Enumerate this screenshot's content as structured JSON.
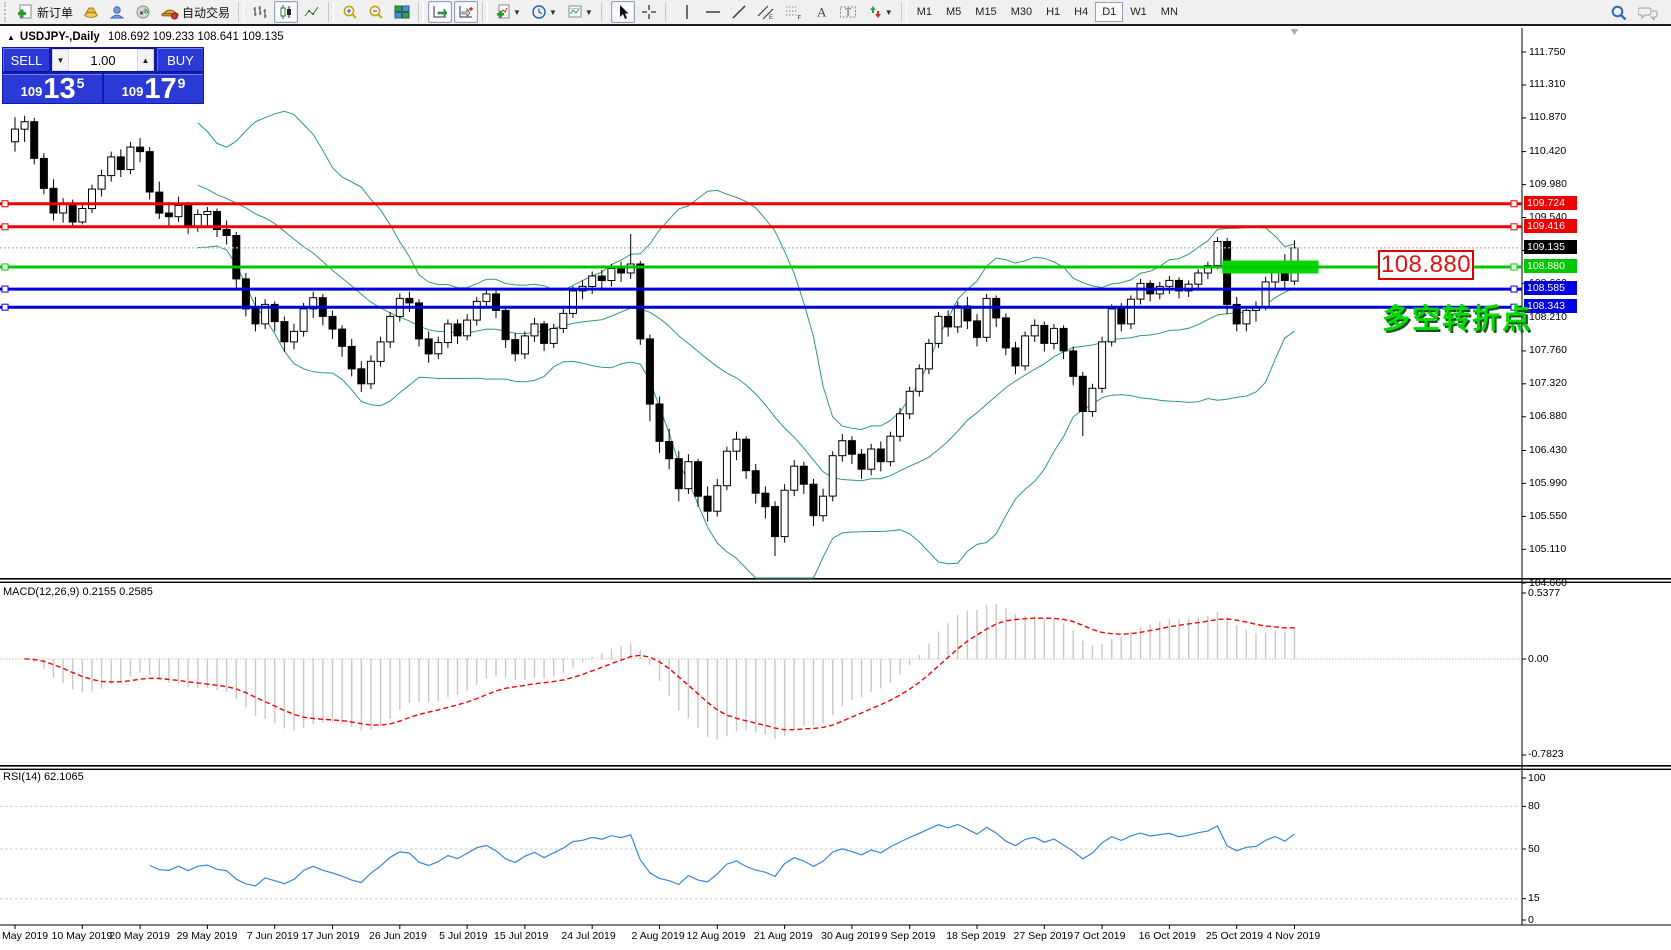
{
  "toolbar": {
    "new_order_label": "新订单",
    "autotrade_label": "自动交易",
    "timeframes": [
      "M1",
      "M5",
      "M15",
      "M30",
      "H1",
      "H4",
      "D1",
      "W1",
      "MN"
    ],
    "active_timeframe": "D1"
  },
  "chart_header": {
    "collapse_icon": "▲",
    "title": "USDJPY-,Daily",
    "ohlc_text": "108.692 109.233 108.641 109.135"
  },
  "trade_panel": {
    "sell_label": "SELL",
    "buy_label": "BUY",
    "volume": "1.00",
    "down_arrow": "▼",
    "up_arrow": "▲",
    "sell_price_small": "109",
    "sell_price_big": "13",
    "sell_price_sup": "5",
    "buy_price_small": "109",
    "buy_price_big": "17",
    "buy_price_sup": "9"
  },
  "annotations": {
    "price_box": "108.880",
    "turning_point_text": "多空转折点"
  },
  "indicator_labels": {
    "macd": "MACD(12,26,9) 0.2155 0.2585",
    "rsi": "RSI(14) 62.1065"
  },
  "chart_data": {
    "type": "candlestick",
    "symbol": "USDJPY-",
    "timeframe": "Daily",
    "current_ohlc": {
      "open": 108.692,
      "high": 109.233,
      "low": 108.641,
      "close": 109.135
    },
    "y_ticks": [
      111.75,
      111.31,
      110.87,
      110.42,
      109.98,
      109.54,
      109.1,
      108.66,
      108.21,
      107.76,
      107.32,
      106.88,
      106.43,
      105.99,
      105.55,
      105.11,
      104.66
    ],
    "horizontal_levels": [
      {
        "price": 109.724,
        "color": "#f00000",
        "style": "solid"
      },
      {
        "price": 109.416,
        "color": "#f00000",
        "style": "solid"
      },
      {
        "price": 109.135,
        "color": "#000000",
        "style": "current"
      },
      {
        "price": 108.88,
        "color": "#00c800",
        "style": "solid"
      },
      {
        "price": 108.585,
        "color": "#0000e0",
        "style": "solid"
      },
      {
        "price": 108.343,
        "color": "#0000e0",
        "style": "solid"
      }
    ],
    "highlight_zone": {
      "price": 108.88,
      "from_bar": 125.5,
      "to_bar": 135.5,
      "color": "#00d800"
    },
    "x_labels": [
      {
        "label": "May 2019",
        "bar": 0
      },
      {
        "label": "10 May 2019",
        "bar": 7
      },
      {
        "label": "20 May 2019",
        "bar": 13
      },
      {
        "label": "29 May 2019",
        "bar": 20
      },
      {
        "label": "7 Jun 2019",
        "bar": 27
      },
      {
        "label": "17 Jun 2019",
        "bar": 33
      },
      {
        "label": "26 Jun 2019",
        "bar": 40
      },
      {
        "label": "5 Jul 2019",
        "bar": 47
      },
      {
        "label": "15 Jul 2019",
        "bar": 53
      },
      {
        "label": "24 Jul 2019",
        "bar": 60
      },
      {
        "label": "2 Aug 2019",
        "bar": 67
      },
      {
        "label": "12 Aug 2019",
        "bar": 73
      },
      {
        "label": "21 Aug 2019",
        "bar": 80
      },
      {
        "label": "30 Aug 2019",
        "bar": 87
      },
      {
        "label": "9 Sep 2019",
        "bar": 93
      },
      {
        "label": "18 Sep 2019",
        "bar": 100
      },
      {
        "label": "27 Sep 2019",
        "bar": 107
      },
      {
        "label": "7 Oct 2019",
        "bar": 113
      },
      {
        "label": "16 Oct 2019",
        "bar": 120
      },
      {
        "label": "25 Oct 2019",
        "bar": 127
      },
      {
        "label": "4 Nov 2019",
        "bar": 133
      }
    ],
    "indicators": {
      "bollinger": {
        "period": 20,
        "deviation": 2,
        "color": "#2e9e68"
      },
      "macd": {
        "label": "MACD(12,26,9)",
        "value_main": 0.2155,
        "value_signal": 0.2585,
        "y_tick_labels": [
          "0.5377",
          "0.00",
          "-0.7823"
        ],
        "hist_color": "#c8c8c8",
        "signal_color": "#ff0000"
      },
      "rsi": {
        "label": "RSI(14)",
        "value": 62.1065,
        "levels": [
          80,
          50,
          15
        ],
        "y_tick_labels": [
          "100",
          "80",
          "50",
          "15",
          "0"
        ],
        "line_color": "#3a86dd"
      }
    },
    "ohlc": [
      [
        110.55,
        110.88,
        110.42,
        110.72
      ],
      [
        110.72,
        110.9,
        110.55,
        110.82
      ],
      [
        110.82,
        110.87,
        110.25,
        110.33
      ],
      [
        110.33,
        110.4,
        109.85,
        109.93
      ],
      [
        109.93,
        110.05,
        109.5,
        109.6
      ],
      [
        109.6,
        109.8,
        109.47,
        109.72
      ],
      [
        109.72,
        109.78,
        109.4,
        109.48
      ],
      [
        109.48,
        109.72,
        109.45,
        109.66
      ],
      [
        109.66,
        109.98,
        109.6,
        109.92
      ],
      [
        109.92,
        110.18,
        109.82,
        110.1
      ],
      [
        110.1,
        110.42,
        110.02,
        110.35
      ],
      [
        110.35,
        110.45,
        110.08,
        110.18
      ],
      [
        110.18,
        110.55,
        110.12,
        110.48
      ],
      [
        110.48,
        110.6,
        110.28,
        110.42
      ],
      [
        110.42,
        110.48,
        109.78,
        109.88
      ],
      [
        109.88,
        110.02,
        109.52,
        109.6
      ],
      [
        109.6,
        109.75,
        109.42,
        109.55
      ],
      [
        109.55,
        109.82,
        109.48,
        109.7
      ],
      [
        109.7,
        109.75,
        109.32,
        109.42
      ],
      [
        109.42,
        109.65,
        109.35,
        109.58
      ],
      [
        109.58,
        109.68,
        109.4,
        109.62
      ],
      [
        109.62,
        109.66,
        109.28,
        109.38
      ],
      [
        109.38,
        109.5,
        109.18,
        109.3
      ],
      [
        109.3,
        109.35,
        108.6,
        108.72
      ],
      [
        108.72,
        108.8,
        108.22,
        108.32
      ],
      [
        108.32,
        108.48,
        108.02,
        108.12
      ],
      [
        108.12,
        108.45,
        108.05,
        108.38
      ],
      [
        108.38,
        108.42,
        108.02,
        108.15
      ],
      [
        108.15,
        108.22,
        107.75,
        107.88
      ],
      [
        107.88,
        108.12,
        107.78,
        108.02
      ],
      [
        108.02,
        108.4,
        107.95,
        108.32
      ],
      [
        108.32,
        108.55,
        108.2,
        108.47
      ],
      [
        108.47,
        108.52,
        108.1,
        108.22
      ],
      [
        108.22,
        108.3,
        107.92,
        108.05
      ],
      [
        108.05,
        108.1,
        107.68,
        107.82
      ],
      [
        107.82,
        107.92,
        107.42,
        107.52
      ],
      [
        107.52,
        107.62,
        107.21,
        107.32
      ],
      [
        107.32,
        107.7,
        107.25,
        107.62
      ],
      [
        107.62,
        107.95,
        107.55,
        107.88
      ],
      [
        107.88,
        108.28,
        107.8,
        108.22
      ],
      [
        108.22,
        108.53,
        108.15,
        108.46
      ],
      [
        108.46,
        108.55,
        108.28,
        108.4
      ],
      [
        108.4,
        108.45,
        107.82,
        107.92
      ],
      [
        107.92,
        108.02,
        107.6,
        107.72
      ],
      [
        107.72,
        107.95,
        107.65,
        107.87
      ],
      [
        107.87,
        108.18,
        107.8,
        108.12
      ],
      [
        108.12,
        108.18,
        107.85,
        107.96
      ],
      [
        107.96,
        108.25,
        107.9,
        108.17
      ],
      [
        108.17,
        108.48,
        108.1,
        108.42
      ],
      [
        108.42,
        108.6,
        108.35,
        108.52
      ],
      [
        108.52,
        108.56,
        108.2,
        108.3
      ],
      [
        108.3,
        108.35,
        107.8,
        107.91
      ],
      [
        107.91,
        108.0,
        107.62,
        107.72
      ],
      [
        107.72,
        108.02,
        107.65,
        107.96
      ],
      [
        107.96,
        108.2,
        107.88,
        108.12
      ],
      [
        108.12,
        108.16,
        107.76,
        107.86
      ],
      [
        107.86,
        108.12,
        107.8,
        108.06
      ],
      [
        108.06,
        108.32,
        108.0,
        108.26
      ],
      [
        108.26,
        108.62,
        108.2,
        108.56
      ],
      [
        108.56,
        108.7,
        108.45,
        108.62
      ],
      [
        108.62,
        108.82,
        108.52,
        108.76
      ],
      [
        108.76,
        108.84,
        108.58,
        108.7
      ],
      [
        108.7,
        108.92,
        108.62,
        108.86
      ],
      [
        108.86,
        108.95,
        108.68,
        108.8
      ],
      [
        108.8,
        109.32,
        108.72,
        108.92
      ],
      [
        108.92,
        108.96,
        107.84,
        107.92
      ],
      [
        107.92,
        107.98,
        106.82,
        107.05
      ],
      [
        107.05,
        107.15,
        106.4,
        106.55
      ],
      [
        106.55,
        106.72,
        106.18,
        106.32
      ],
      [
        106.32,
        106.42,
        105.75,
        105.92
      ],
      [
        105.92,
        106.38,
        105.85,
        106.28
      ],
      [
        106.28,
        106.32,
        105.68,
        105.82
      ],
      [
        105.82,
        105.95,
        105.48,
        105.62
      ],
      [
        105.62,
        106.05,
        105.55,
        105.96
      ],
      [
        105.96,
        106.48,
        105.9,
        106.42
      ],
      [
        106.42,
        106.68,
        106.3,
        106.58
      ],
      [
        106.58,
        106.62,
        106.05,
        106.16
      ],
      [
        106.16,
        106.25,
        105.72,
        105.86
      ],
      [
        105.86,
        105.95,
        105.52,
        105.68
      ],
      [
        105.68,
        105.75,
        105.02,
        105.28
      ],
      [
        105.28,
        105.98,
        105.2,
        105.9
      ],
      [
        105.9,
        106.3,
        105.82,
        106.22
      ],
      [
        106.22,
        106.28,
        105.85,
        105.98
      ],
      [
        105.98,
        106.05,
        105.42,
        105.56
      ],
      [
        105.56,
        105.92,
        105.48,
        105.82
      ],
      [
        105.82,
        106.42,
        105.75,
        106.36
      ],
      [
        106.36,
        106.65,
        106.28,
        106.56
      ],
      [
        106.56,
        106.62,
        106.25,
        106.38
      ],
      [
        106.38,
        106.45,
        106.05,
        106.18
      ],
      [
        106.18,
        106.52,
        106.1,
        106.45
      ],
      [
        106.45,
        106.55,
        106.15,
        106.28
      ],
      [
        106.28,
        106.68,
        106.22,
        106.62
      ],
      [
        106.62,
        107.0,
        106.55,
        106.92
      ],
      [
        106.92,
        107.28,
        106.85,
        107.22
      ],
      [
        107.22,
        107.58,
        107.15,
        107.52
      ],
      [
        107.52,
        107.92,
        107.45,
        107.86
      ],
      [
        107.86,
        108.28,
        107.8,
        108.22
      ],
      [
        108.22,
        108.3,
        107.95,
        108.08
      ],
      [
        108.08,
        108.42,
        108.0,
        108.36
      ],
      [
        108.36,
        108.48,
        108.05,
        108.16
      ],
      [
        108.16,
        108.25,
        107.82,
        107.94
      ],
      [
        107.94,
        108.52,
        107.88,
        108.46
      ],
      [
        108.46,
        108.5,
        108.08,
        108.2
      ],
      [
        108.2,
        108.26,
        107.7,
        107.8
      ],
      [
        107.8,
        107.88,
        107.45,
        107.56
      ],
      [
        107.56,
        108.02,
        107.5,
        107.96
      ],
      [
        107.96,
        108.18,
        107.88,
        108.1
      ],
      [
        108.1,
        108.15,
        107.75,
        107.86
      ],
      [
        107.86,
        108.12,
        107.78,
        108.06
      ],
      [
        108.06,
        108.1,
        107.65,
        107.76
      ],
      [
        107.76,
        107.82,
        107.3,
        107.42
      ],
      [
        107.42,
        107.48,
        106.62,
        106.95
      ],
      [
        106.95,
        107.32,
        106.88,
        107.26
      ],
      [
        107.26,
        107.95,
        107.2,
        107.88
      ],
      [
        107.88,
        108.38,
        107.82,
        108.32
      ],
      [
        108.32,
        108.4,
        108.02,
        108.12
      ],
      [
        108.12,
        108.5,
        108.05,
        108.45
      ],
      [
        108.45,
        108.72,
        108.38,
        108.66
      ],
      [
        108.66,
        108.7,
        108.42,
        108.52
      ],
      [
        108.52,
        108.68,
        108.45,
        108.62
      ],
      [
        108.62,
        108.76,
        108.52,
        108.7
      ],
      [
        108.7,
        108.74,
        108.46,
        108.56
      ],
      [
        108.56,
        108.7,
        108.48,
        108.65
      ],
      [
        108.65,
        108.85,
        108.58,
        108.8
      ],
      [
        108.8,
        108.95,
        108.72,
        108.9
      ],
      [
        108.9,
        109.28,
        108.85,
        109.22
      ],
      [
        109.22,
        109.27,
        108.25,
        108.38
      ],
      [
        108.38,
        108.48,
        108.02,
        108.12
      ],
      [
        108.12,
        108.35,
        108.02,
        108.3
      ],
      [
        108.3,
        108.42,
        108.15,
        108.35
      ],
      [
        108.35,
        108.75,
        108.3,
        108.68
      ],
      [
        108.68,
        108.95,
        108.6,
        108.9
      ],
      [
        108.9,
        109.05,
        108.6,
        108.7
      ],
      [
        108.692,
        109.233,
        108.641,
        109.135
      ]
    ]
  }
}
